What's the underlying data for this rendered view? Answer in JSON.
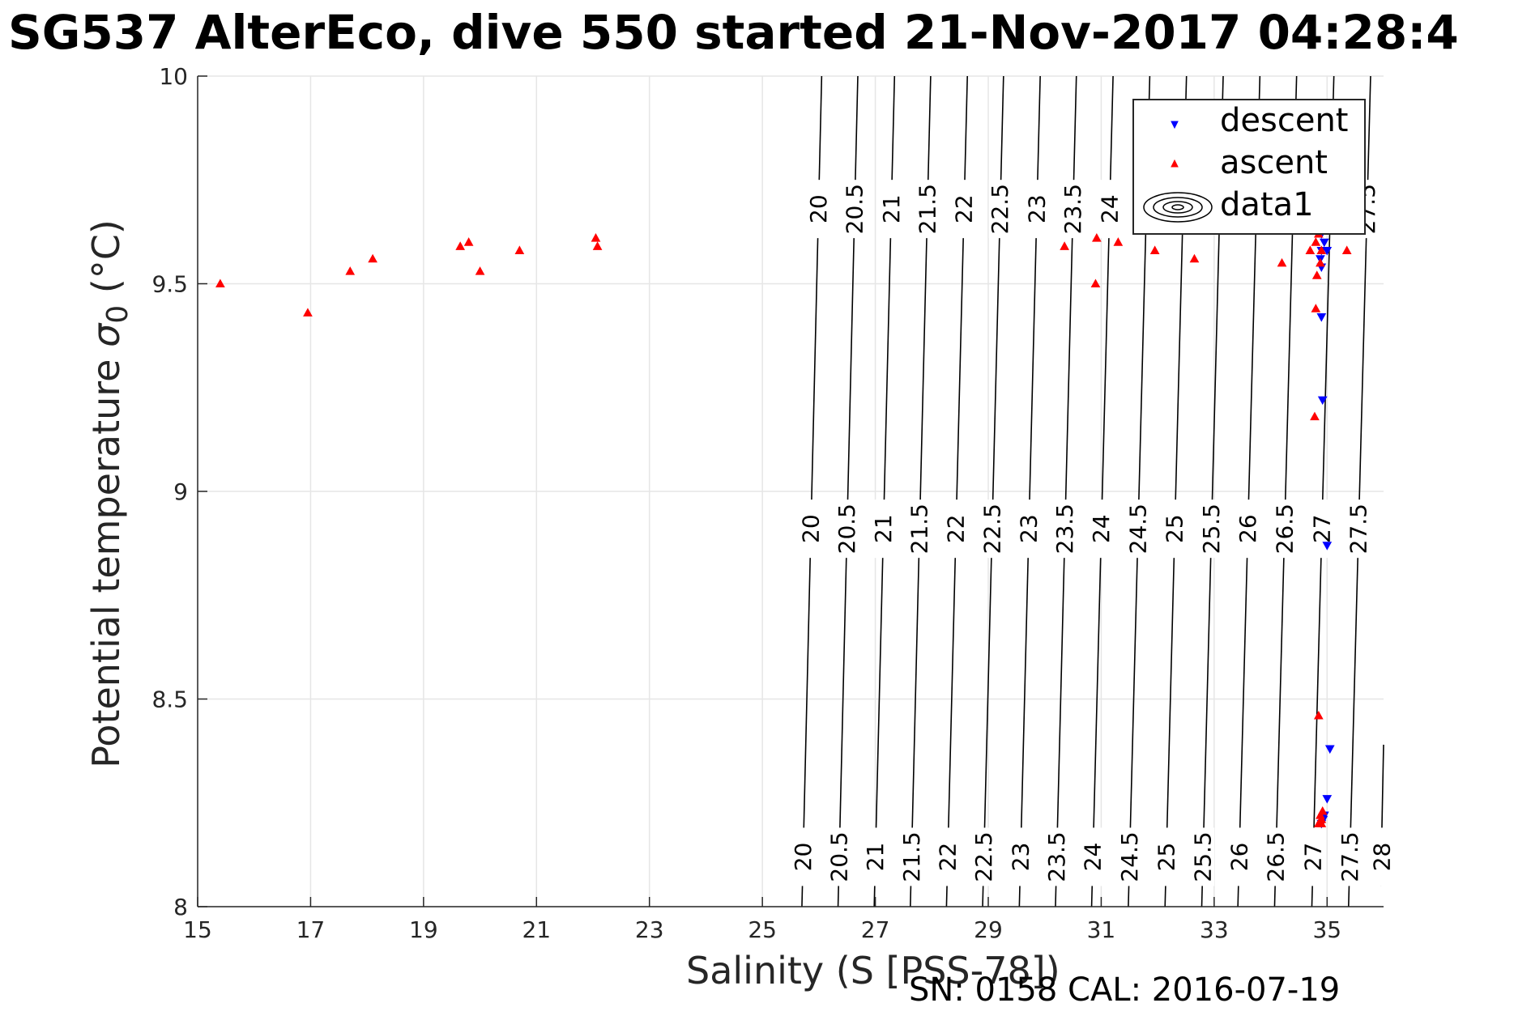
{
  "title": "SG537 AlterEco, dive 550 started 21-Nov-2017 04:28:4",
  "footer": "SN: 0158  CAL: 2016-07-19",
  "chart_data": {
    "type": "scatter",
    "title": "SG537 AlterEco, dive 550 started 21-Nov-2017 04:28:4",
    "xlabel": "Salinity (S [PSS-78])",
    "ylabel_main": "Potential temperature ",
    "ylabel_sigma": "σ",
    "ylabel_sub": "0",
    "ylabel_unit": " (°C)",
    "xlim": [
      15,
      36
    ],
    "ylim": [
      8,
      10
    ],
    "xticks": [
      15,
      17,
      19,
      21,
      23,
      25,
      27,
      29,
      31,
      33,
      35
    ],
    "yticks": [
      8,
      8.5,
      9,
      9.5,
      10
    ],
    "grid": true,
    "legend_position": "top-right",
    "legend": [
      "descent",
      "ascent",
      "data1"
    ],
    "series": [
      {
        "name": "descent",
        "marker": "triangle-down",
        "color": "#0000ff",
        "points": [
          [
            34.9,
            9.62
          ],
          [
            34.95,
            9.6
          ],
          [
            34.9,
            9.58
          ],
          [
            34.88,
            9.56
          ],
          [
            34.9,
            9.54
          ],
          [
            35.0,
            9.58
          ],
          [
            34.9,
            9.42
          ],
          [
            34.92,
            9.22
          ],
          [
            35.0,
            8.87
          ],
          [
            35.05,
            8.38
          ],
          [
            35.0,
            8.26
          ],
          [
            34.95,
            8.22
          ],
          [
            34.93,
            8.21
          ],
          [
            34.9,
            8.2
          ],
          [
            34.95,
            8.22
          ]
        ]
      },
      {
        "name": "ascent",
        "marker": "triangle-up",
        "color": "#ff0000",
        "points": [
          [
            15.4,
            9.5
          ],
          [
            16.95,
            9.43
          ],
          [
            17.7,
            9.53
          ],
          [
            18.1,
            9.56
          ],
          [
            19.65,
            9.59
          ],
          [
            19.8,
            9.6
          ],
          [
            20.0,
            9.53
          ],
          [
            20.7,
            9.58
          ],
          [
            22.05,
            9.61
          ],
          [
            22.08,
            9.59
          ],
          [
            30.35,
            9.59
          ],
          [
            30.9,
            9.5
          ],
          [
            30.92,
            9.61
          ],
          [
            31.3,
            9.6
          ],
          [
            31.95,
            9.58
          ],
          [
            32.65,
            9.56
          ],
          [
            34.2,
            9.55
          ],
          [
            34.7,
            9.58
          ],
          [
            34.85,
            9.62
          ],
          [
            34.8,
            9.6
          ],
          [
            34.9,
            9.58
          ],
          [
            34.88,
            9.55
          ],
          [
            34.82,
            9.52
          ],
          [
            34.8,
            9.44
          ],
          [
            34.78,
            9.18
          ],
          [
            35.35,
            9.58
          ],
          [
            34.85,
            8.46
          ],
          [
            34.9,
            8.21
          ],
          [
            34.88,
            8.22
          ],
          [
            34.92,
            8.23
          ],
          [
            34.85,
            8.2
          ],
          [
            34.9,
            8.2
          ]
        ]
      }
    ],
    "contours": [
      {
        "level": "20",
        "label_rows": [
          1,
          2,
          3
        ],
        "s_bottom": 25.7,
        "s_top": 26.05
      },
      {
        "level": "20.5",
        "label_rows": [
          1,
          2,
          3
        ],
        "s_bottom": 26.34,
        "s_top": 26.69
      },
      {
        "level": "21",
        "label_rows": [
          1,
          2,
          3
        ],
        "s_bottom": 26.98,
        "s_top": 27.34
      },
      {
        "level": "21.5",
        "label_rows": [
          1,
          2,
          3
        ],
        "s_bottom": 27.62,
        "s_top": 27.98
      },
      {
        "level": "22",
        "label_rows": [
          1,
          2,
          3
        ],
        "s_bottom": 28.26,
        "s_top": 28.63
      },
      {
        "level": "22.5",
        "label_rows": [
          1,
          2,
          3
        ],
        "s_bottom": 28.9,
        "s_top": 29.27
      },
      {
        "level": "23",
        "label_rows": [
          1,
          2,
          3
        ],
        "s_bottom": 29.55,
        "s_top": 29.92
      },
      {
        "level": "23.5",
        "label_rows": [
          1,
          2,
          3
        ],
        "s_bottom": 30.19,
        "s_top": 30.56
      },
      {
        "level": "24",
        "label_rows": [
          1,
          2,
          3
        ],
        "s_bottom": 30.83,
        "s_top": 31.21
      },
      {
        "level": "24.5",
        "label_rows": [
          1,
          2
        ],
        "s_bottom": 31.48,
        "s_top": 31.86
      },
      {
        "level": "25",
        "label_rows": [
          1,
          2
        ],
        "s_bottom": 32.13,
        "s_top": 32.51
      },
      {
        "level": "25.5",
        "label_rows": [
          1,
          2
        ],
        "s_bottom": 32.78,
        "s_top": 33.16
      },
      {
        "level": "26",
        "label_rows": [
          1,
          2
        ],
        "s_bottom": 33.42,
        "s_top": 33.81
      },
      {
        "level": "26.5",
        "label_rows": [
          1,
          2
        ],
        "s_bottom": 34.07,
        "s_top": 34.46
      },
      {
        "level": "27",
        "label_rows": [
          1,
          2
        ],
        "s_bottom": 34.73,
        "s_top": 35.12
      },
      {
        "level": "27.5",
        "label_rows": [
          1,
          2,
          3
        ],
        "s_bottom": 35.38,
        "s_top": 35.77
      },
      {
        "level": "28",
        "label_rows": [
          1
        ],
        "s_bottom": 36.0,
        "s_top": 36.0
      }
    ]
  }
}
